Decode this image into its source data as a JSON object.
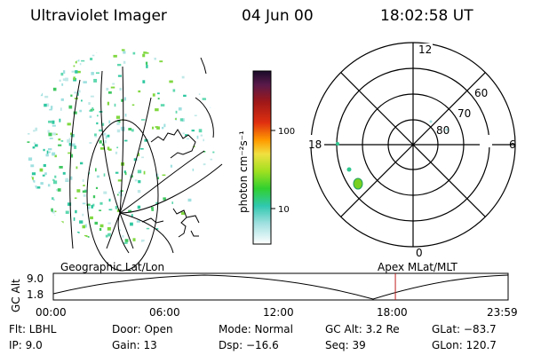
{
  "header": {
    "instrument": "Ultraviolet Imager",
    "date": "04 Jun 00",
    "time": "18:02:58 UT"
  },
  "colorbar": {
    "unit_label": "photon cm⁻²s⁻¹",
    "ticks": [
      "100",
      "10"
    ]
  },
  "polar": {
    "mlt_labels": {
      "top": "12",
      "left": "18",
      "right": "6",
      "bottom": "0"
    },
    "lat_labels": [
      "60",
      "70",
      "80"
    ]
  },
  "orbit": {
    "left_caption": "Geographic Lat/Lon",
    "right_caption": "Apex MLat/MLT",
    "axis_label": "GC Alt",
    "y_ticks": [
      "9.0",
      "1.8"
    ],
    "x_ticks": [
      "00:00",
      "06:00",
      "12:00",
      "18:00",
      "23:59"
    ],
    "marker_time_hours": 18.05
  },
  "info": {
    "flt": "Flt: LBHL",
    "door": "Door: Open",
    "mode": "Mode: Normal",
    "gc_alt": "GC Alt: 3.2 Re",
    "glat": "GLat: −83.7",
    "ip": "IP:  9.0",
    "gain": "Gain: 13",
    "dsp": "Dsp:  −16.6",
    "seq": "Seq: 39",
    "glon": "GLon: 120.7"
  }
}
